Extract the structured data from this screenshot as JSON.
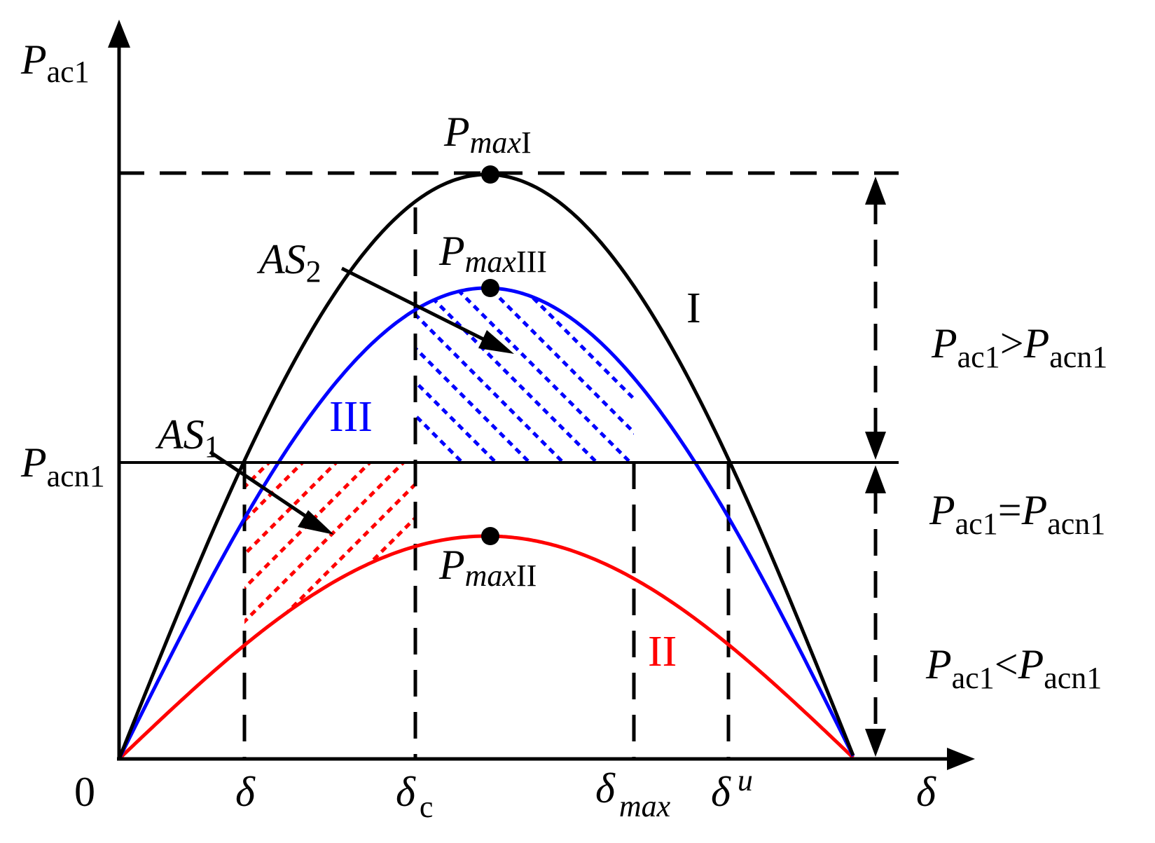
{
  "axes": {
    "y_symbol": "P",
    "y_subscript": "ac1",
    "x_symbol": "δ",
    "origin": "0"
  },
  "curves": [
    {
      "id": "I",
      "label": "I",
      "color": "#000000",
      "peak": {
        "symbol": "P",
        "sub_italic": "max",
        "sub_roman": "I"
      }
    },
    {
      "id": "III",
      "label": "III",
      "color": "#0000ff",
      "peak": {
        "symbol": "P",
        "sub_italic": "max",
        "sub_roman": "III"
      }
    },
    {
      "id": "II",
      "label": "II",
      "color": "#ff0000",
      "peak": {
        "symbol": "P",
        "sub_italic": "max",
        "sub_roman": "II"
      }
    }
  ],
  "pacn_label": {
    "symbol": "P",
    "subscript": "acn1"
  },
  "x_markers": [
    {
      "id": "delta",
      "symbol": "δ",
      "sub": "",
      "sup": "",
      "sub_italic": false
    },
    {
      "id": "delta_c",
      "symbol": "δ",
      "sub": "c",
      "sup": "",
      "sub_italic": false
    },
    {
      "id": "delta_max",
      "symbol": "δ",
      "sub": "max",
      "sup": "",
      "sub_italic": true
    },
    {
      "id": "delta_u",
      "symbol": "δ",
      "sub": "",
      "sup": "u",
      "sub_italic": true
    }
  ],
  "areas": [
    {
      "id": "AS1",
      "symbol": "AS",
      "sub": "1",
      "color": "#ff0000"
    },
    {
      "id": "AS2",
      "symbol": "AS",
      "sub": "2",
      "color": "#0000ff"
    }
  ],
  "regions": [
    {
      "id": "greater",
      "left": "P",
      "left_sub": "ac1",
      "op": ">",
      "right": "P",
      "right_sub": "acn1"
    },
    {
      "id": "equal",
      "left": "P",
      "left_sub": "ac1",
      "op": "=",
      "right": "P",
      "right_sub": "acn1"
    },
    {
      "id": "less",
      "left": "P",
      "left_sub": "ac1",
      "op": "<",
      "right": "P",
      "right_sub": "acn1"
    }
  ]
}
